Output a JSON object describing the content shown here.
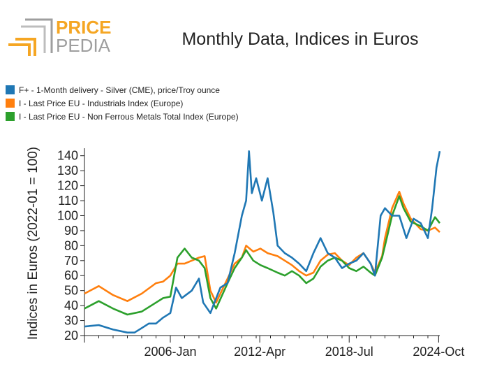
{
  "logo": {
    "line1": "PRICE",
    "line2": "PEDIA",
    "orange": "#f5a623",
    "gray": "#9e9e9e"
  },
  "chart_data": {
    "type": "line",
    "title": "Monthly Data, Indices in Euros",
    "ylabel": "Indices in Euros (2022-01 = 100)",
    "xlabel": "",
    "ylim": [
      20,
      145
    ],
    "yticks": [
      20,
      30,
      40,
      50,
      60,
      70,
      80,
      90,
      100,
      110,
      120,
      130,
      140
    ],
    "xrange": [
      2000.0,
      2024.83
    ],
    "xticks": [
      {
        "x": 2006.0,
        "label": "2006-Jan"
      },
      {
        "x": 2012.25,
        "label": "2012-Apr"
      },
      {
        "x": 2018.5,
        "label": "2018-Jul"
      },
      {
        "x": 2024.75,
        "label": "2024-Oct"
      }
    ],
    "series": [
      {
        "name": "F+ - 1-Month delivery - Silver (CME), price/Troy ounce",
        "color": "#1f77b4",
        "x": [
          2000.0,
          2001.0,
          2002.0,
          2003.0,
          2003.5,
          2004.0,
          2004.5,
          2005.0,
          2005.5,
          2006.0,
          2006.4,
          2006.8,
          2007.5,
          2008.0,
          2008.3,
          2008.8,
          2009.0,
          2009.5,
          2010.0,
          2010.5,
          2011.0,
          2011.3,
          2011.5,
          2011.7,
          2012.0,
          2012.4,
          2012.8,
          2013.2,
          2013.5,
          2014.0,
          2014.5,
          2015.0,
          2015.5,
          2016.0,
          2016.5,
          2017.0,
          2017.5,
          2018.0,
          2018.5,
          2019.0,
          2019.5,
          2020.0,
          2020.3,
          2020.7,
          2021.0,
          2021.5,
          2022.0,
          2022.5,
          2023.0,
          2023.5,
          2024.0,
          2024.3,
          2024.6,
          2024.83
        ],
        "values": [
          26,
          27,
          24,
          22,
          22,
          25,
          28,
          28,
          32,
          35,
          52,
          45,
          50,
          58,
          42,
          35,
          40,
          52,
          55,
          75,
          100,
          110,
          143,
          115,
          125,
          110,
          125,
          102,
          80,
          75,
          72,
          68,
          63,
          75,
          85,
          75,
          72,
          65,
          68,
          70,
          75,
          68,
          60,
          100,
          105,
          100,
          100,
          85,
          98,
          95,
          85,
          105,
          132,
          143
        ]
      },
      {
        "name": "I - Last Price EU - Industrials Index (Europe)",
        "color": "#ff7f0e",
        "x": [
          2000.0,
          2001.0,
          2002.0,
          2003.0,
          2004.0,
          2005.0,
          2005.5,
          2006.0,
          2006.5,
          2007.0,
          2007.5,
          2008.0,
          2008.4,
          2008.8,
          2009.2,
          2010.0,
          2010.5,
          2011.0,
          2011.3,
          2011.8,
          2012.3,
          2012.8,
          2013.5,
          2014.0,
          2014.5,
          2015.0,
          2015.5,
          2016.0,
          2016.5,
          2017.0,
          2017.5,
          2018.0,
          2018.5,
          2019.0,
          2019.5,
          2020.0,
          2020.3,
          2020.8,
          2021.0,
          2021.5,
          2022.0,
          2022.3,
          2022.8,
          2023.5,
          2024.0,
          2024.5,
          2024.83
        ],
        "values": [
          48,
          53,
          47,
          43,
          48,
          55,
          56,
          60,
          68,
          68,
          70,
          72,
          73,
          50,
          42,
          58,
          68,
          72,
          80,
          76,
          78,
          75,
          73,
          70,
          67,
          63,
          60,
          62,
          70,
          74,
          75,
          70,
          67,
          72,
          75,
          68,
          62,
          73,
          85,
          105,
          116,
          108,
          98,
          91,
          90,
          92,
          89
        ]
      },
      {
        "name": "I - Last Price EU - Non Ferrous Metals Total Index (Europe)",
        "color": "#2ca02c",
        "x": [
          2000.0,
          2001.0,
          2002.0,
          2003.0,
          2004.0,
          2005.0,
          2005.5,
          2006.0,
          2006.5,
          2007.0,
          2007.5,
          2008.0,
          2008.4,
          2008.8,
          2009.2,
          2010.0,
          2010.5,
          2011.0,
          2011.3,
          2011.8,
          2012.3,
          2012.8,
          2013.5,
          2014.0,
          2014.5,
          2015.0,
          2015.5,
          2016.0,
          2016.5,
          2017.0,
          2017.5,
          2018.0,
          2018.5,
          2019.0,
          2019.5,
          2020.0,
          2020.3,
          2020.8,
          2021.0,
          2021.5,
          2022.0,
          2022.3,
          2022.8,
          2023.5,
          2024.0,
          2024.5,
          2024.83
        ],
        "values": [
          38,
          43,
          38,
          34,
          36,
          42,
          45,
          46,
          72,
          78,
          72,
          70,
          65,
          45,
          38,
          55,
          65,
          72,
          77,
          70,
          67,
          65,
          62,
          60,
          63,
          60,
          55,
          58,
          66,
          70,
          72,
          70,
          65,
          63,
          66,
          62,
          60,
          72,
          80,
          100,
          113,
          105,
          96,
          93,
          90,
          99,
          95
        ]
      }
    ]
  }
}
